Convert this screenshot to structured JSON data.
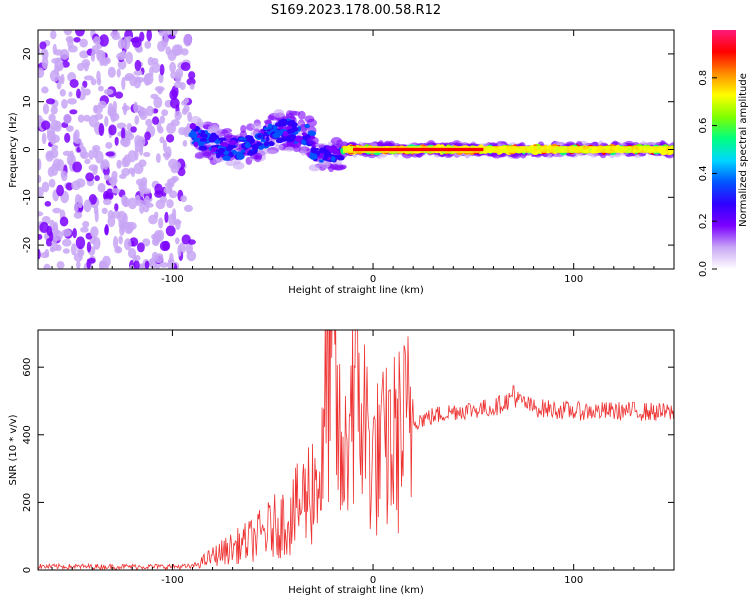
{
  "title": "S169.2023.178.00.58.R12",
  "chart_data": [
    {
      "type": "heatmap",
      "xlabel": "Height of straight line (km)",
      "ylabel": "Frequency (Hz)",
      "xlim": [
        -167,
        150
      ],
      "ylim": [
        -25,
        25
      ],
      "x_ticks": [
        -100,
        0,
        100
      ],
      "y_ticks": [
        -20,
        -10,
        0,
        10,
        20
      ],
      "colorbar": {
        "label": "Normalized spectral amplitude",
        "range": [
          0,
          1
        ],
        "ticks": [
          0.0,
          0.2,
          0.4,
          0.6,
          0.8
        ],
        "colormap": [
          "#ffffff",
          "#c8a6f5",
          "#7b00ff",
          "#2f00ff",
          "#0055ff",
          "#00d7ff",
          "#00ff7f",
          "#7fff00",
          "#ffff00",
          "#ff8c00",
          "#ff0000",
          "#ff1a7a"
        ]
      },
      "regions": [
        {
          "x_range": [
            -167,
            -90
          ],
          "freq_range": [
            -25,
            25
          ],
          "description_level": 0.15
        },
        {
          "x_range": [
            -90,
            -30
          ],
          "freq_center": 2,
          "freq_width": 8,
          "level": 0.35
        },
        {
          "x_range": [
            -30,
            -15
          ],
          "freq_center": -1,
          "freq_width": 6,
          "level": 0.3
        },
        {
          "x_range": [
            -15,
            150
          ],
          "freq_center": 0,
          "freq_width": 2,
          "level": 0.85
        }
      ]
    },
    {
      "type": "line",
      "xlabel": "Height of straight line (km)",
      "ylabel": "SNR (10 * v/v)",
      "xlim": [
        -167,
        150
      ],
      "ylim": [
        0,
        710
      ],
      "x_ticks": [
        -100,
        0,
        100
      ],
      "y_ticks": [
        0,
        200,
        400,
        600
      ],
      "color": "#ee3333",
      "series": [
        {
          "values_summary": [
            [
              -167,
              10
            ],
            [
              -90,
              10
            ],
            [
              -80,
              40
            ],
            [
              -60,
              90
            ],
            [
              -40,
              160
            ],
            [
              -25,
              300
            ],
            [
              -22,
              710
            ],
            [
              -15,
              250
            ],
            [
              -10,
              600
            ],
            [
              0,
              320
            ],
            [
              10,
              370
            ],
            [
              20,
              440
            ],
            [
              40,
              470
            ],
            [
              60,
              480
            ],
            [
              70,
              510
            ],
            [
              80,
              480
            ],
            [
              100,
              470
            ],
            [
              130,
              470
            ],
            [
              150,
              465
            ]
          ]
        }
      ]
    }
  ]
}
